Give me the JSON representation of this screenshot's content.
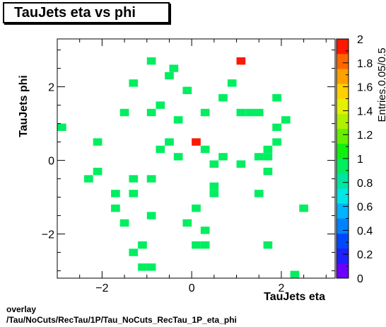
{
  "chart_data": {
    "type": "heatmap",
    "title": "TauJets eta vs phi",
    "xlabel": "TauJets eta",
    "ylabel": "TauJets phi",
    "zlabel": "Entries.0.05/0.5",
    "xlim": [
      -3.0,
      3.2
    ],
    "ylim": [
      -3.2,
      3.3
    ],
    "zlim": [
      0,
      2
    ],
    "bin_width_eta": 0.2,
    "bin_width_phi": 0.2,
    "x_ticks": [
      -2,
      0,
      2
    ],
    "y_ticks": [
      -2,
      0,
      2
    ],
    "z_ticks": [
      0,
      0.2,
      0.4,
      0.6,
      0.8,
      1,
      1.2,
      1.4,
      1.6,
      1.8,
      2
    ],
    "tick_labels_x": [
      "−2",
      "0",
      "2"
    ],
    "tick_labels_y": [
      "−2",
      "0",
      "2"
    ],
    "tick_labels_z": [
      "0",
      "0.2",
      "0.4",
      "0.6",
      "0.8",
      "1",
      "1.2",
      "1.4",
      "1.6",
      "1.8",
      "2"
    ],
    "colormap": [
      "#6a00ff",
      "#2020ff",
      "#0048ff",
      "#0082ff",
      "#00b4ff",
      "#00e6e6",
      "#00e6a0",
      "#00ee60",
      "#10f010",
      "#66f000",
      "#b0f000",
      "#e6f000",
      "#ffd000",
      "#ffa000",
      "#ff6600",
      "#ff1800"
    ],
    "points": [
      {
        "eta": -0.9,
        "phi": 2.7,
        "value": 1
      },
      {
        "eta": -0.4,
        "phi": 2.5,
        "value": 1
      },
      {
        "eta": 1.1,
        "phi": 2.7,
        "value": 2
      },
      {
        "eta": -0.5,
        "phi": 2.3,
        "value": 1
      },
      {
        "eta": -1.3,
        "phi": 2.1,
        "value": 1
      },
      {
        "eta": 0.9,
        "phi": 2.1,
        "value": 1
      },
      {
        "eta": -0.1,
        "phi": 1.9,
        "value": 1
      },
      {
        "eta": 0.7,
        "phi": 1.7,
        "value": 1
      },
      {
        "eta": 1.9,
        "phi": 1.7,
        "value": 1
      },
      {
        "eta": -0.7,
        "phi": 1.5,
        "value": 1
      },
      {
        "eta": -1.5,
        "phi": 1.3,
        "value": 1
      },
      {
        "eta": -0.9,
        "phi": 1.3,
        "value": 1
      },
      {
        "eta": 0.3,
        "phi": 1.3,
        "value": 1
      },
      {
        "eta": 1.1,
        "phi": 1.3,
        "value": 1
      },
      {
        "eta": 1.3,
        "phi": 1.3,
        "value": 1
      },
      {
        "eta": 1.5,
        "phi": 1.3,
        "value": 1
      },
      {
        "eta": -0.3,
        "phi": 1.1,
        "value": 1
      },
      {
        "eta": 2.1,
        "phi": 1.1,
        "value": 1
      },
      {
        "eta": -2.9,
        "phi": 0.9,
        "value": 1
      },
      {
        "eta": 1.9,
        "phi": 0.9,
        "value": 1
      },
      {
        "eta": -2.1,
        "phi": 0.5,
        "value": 1
      },
      {
        "eta": -0.5,
        "phi": 0.5,
        "value": 1
      },
      {
        "eta": 0.1,
        "phi": 0.5,
        "value": 2
      },
      {
        "eta": 1.9,
        "phi": 0.5,
        "value": 1
      },
      {
        "eta": -0.7,
        "phi": 0.3,
        "value": 1
      },
      {
        "eta": 0.3,
        "phi": 0.3,
        "value": 1
      },
      {
        "eta": 1.7,
        "phi": 0.3,
        "value": 1
      },
      {
        "eta": -0.3,
        "phi": 0.1,
        "value": 1
      },
      {
        "eta": 0.7,
        "phi": 0.1,
        "value": 1
      },
      {
        "eta": 1.5,
        "phi": 0.1,
        "value": 1
      },
      {
        "eta": 1.7,
        "phi": 0.1,
        "value": 1
      },
      {
        "eta": 0.5,
        "phi": -0.1,
        "value": 1
      },
      {
        "eta": 1.1,
        "phi": -0.1,
        "value": 1
      },
      {
        "eta": -2.1,
        "phi": -0.3,
        "value": 1
      },
      {
        "eta": 1.7,
        "phi": -0.3,
        "value": 1
      },
      {
        "eta": -2.3,
        "phi": -0.5,
        "value": 1
      },
      {
        "eta": -1.3,
        "phi": -0.5,
        "value": 1
      },
      {
        "eta": -0.9,
        "phi": -0.5,
        "value": 1
      },
      {
        "eta": 0.5,
        "phi": -0.7,
        "value": 1
      },
      {
        "eta": -1.7,
        "phi": -0.9,
        "value": 1
      },
      {
        "eta": -1.3,
        "phi": -0.9,
        "value": 1
      },
      {
        "eta": 0.5,
        "phi": -0.9,
        "value": 1
      },
      {
        "eta": 1.5,
        "phi": -0.9,
        "value": 1
      },
      {
        "eta": -1.7,
        "phi": -1.3,
        "value": 1
      },
      {
        "eta": 0.1,
        "phi": -1.3,
        "value": 1
      },
      {
        "eta": 2.5,
        "phi": -1.3,
        "value": 1
      },
      {
        "eta": -0.9,
        "phi": -1.5,
        "value": 1
      },
      {
        "eta": -1.5,
        "phi": -1.7,
        "value": 1
      },
      {
        "eta": -0.1,
        "phi": -1.7,
        "value": 1
      },
      {
        "eta": 0.3,
        "phi": -1.9,
        "value": 1
      },
      {
        "eta": -1.1,
        "phi": -2.3,
        "value": 1
      },
      {
        "eta": 0.1,
        "phi": -2.3,
        "value": 1
      },
      {
        "eta": 0.3,
        "phi": -2.3,
        "value": 1
      },
      {
        "eta": 1.7,
        "phi": -2.3,
        "value": 1
      },
      {
        "eta": -1.3,
        "phi": -2.5,
        "value": 1
      },
      {
        "eta": -1.1,
        "phi": -2.9,
        "value": 1
      },
      {
        "eta": -0.9,
        "phi": -2.9,
        "value": 1
      },
      {
        "eta": 2.3,
        "phi": -3.1,
        "value": 1
      }
    ]
  },
  "footer": {
    "line1": "overlay",
    "line2": "/Tau/NoCuts/RecTau/1P/Tau_NoCuts_RecTau_1P_eta_phi"
  }
}
